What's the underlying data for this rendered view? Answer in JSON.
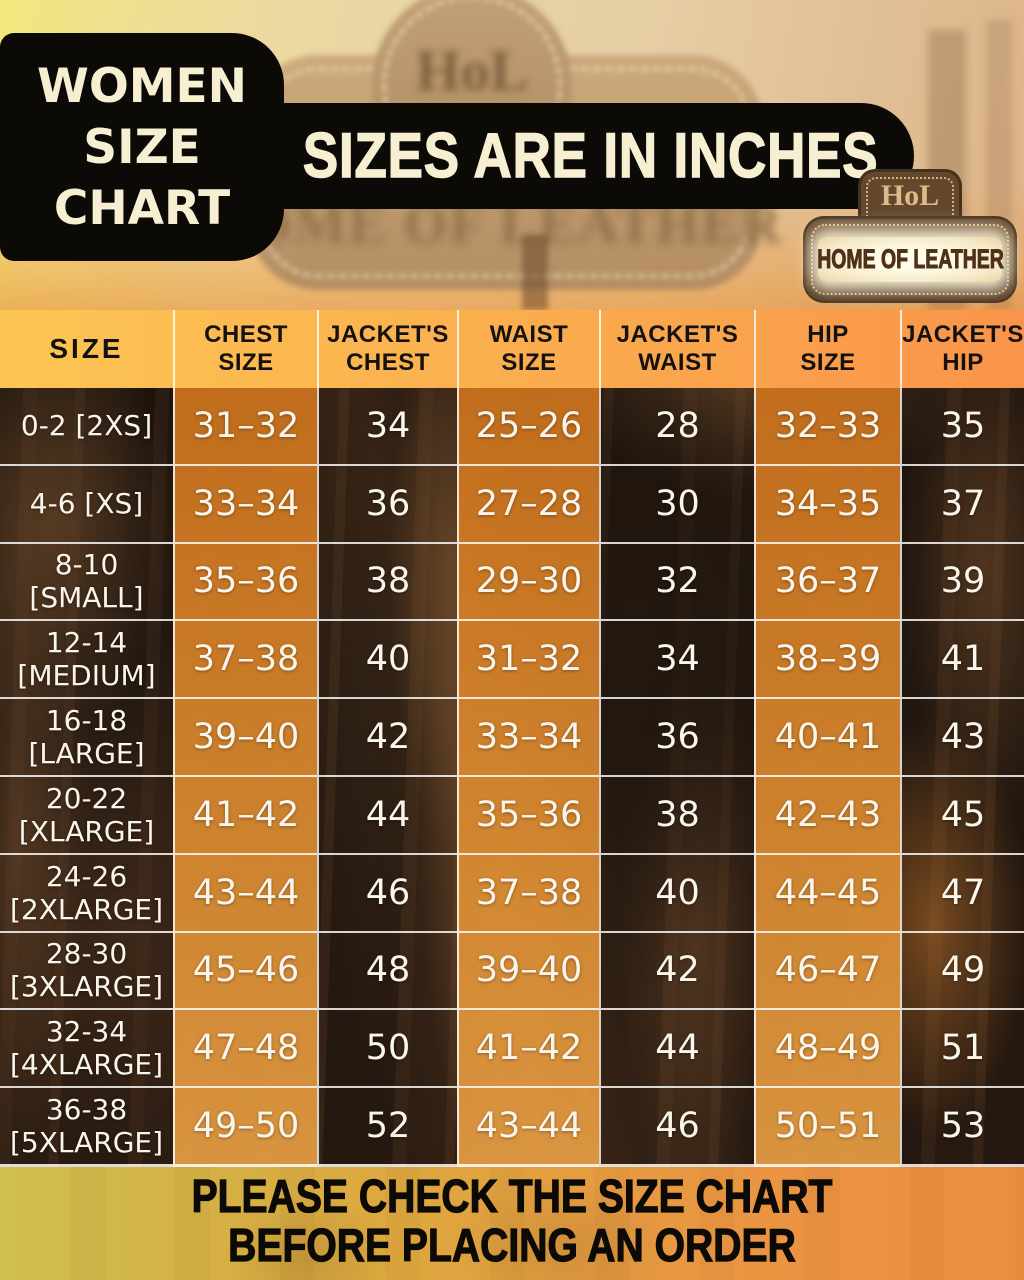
{
  "title": {
    "lines": [
      "WOMEN",
      "SIZE",
      "CHART"
    ]
  },
  "banner": {
    "text": "SIZES ARE IN INCHES"
  },
  "badge": {
    "monogram": "HoL",
    "name": "HOME OF LEATHER"
  },
  "signboard": {
    "monogram": "HoL",
    "text": "OME OF LEATHER"
  },
  "colors": {
    "accent_orange": "#e08b2e",
    "header_gradient_left": "#fcc553",
    "header_gradient_right": "#f9944a",
    "panel_black": "#0c0a07",
    "text_cream": "#f7efd2"
  },
  "table": {
    "headers": [
      {
        "l1": "SIZE",
        "l2": ""
      },
      {
        "l1": "CHEST",
        "l2": "SIZE"
      },
      {
        "l1": "JACKET'S",
        "l2": "CHEST"
      },
      {
        "l1": "WAIST",
        "l2": "SIZE"
      },
      {
        "l1": "JACKET'S",
        "l2": "WAIST"
      },
      {
        "l1": "HIP",
        "l2": "SIZE"
      },
      {
        "l1": "JACKET'S",
        "l2": "HIP"
      }
    ],
    "rows": [
      {
        "label1": "0-2 [2XS]",
        "label2": "",
        "chest": "31–32",
        "jacket_chest": "34",
        "waist": "25–26",
        "jacket_waist": "28",
        "hip": "32–33",
        "jacket_hip": "35"
      },
      {
        "label1": "4-6 [XS]",
        "label2": "",
        "chest": "33–34",
        "jacket_chest": "36",
        "waist": "27–28",
        "jacket_waist": "30",
        "hip": "34–35",
        "jacket_hip": "37"
      },
      {
        "label1": "8-10",
        "label2": "[SMALL]",
        "chest": "35–36",
        "jacket_chest": "38",
        "waist": "29–30",
        "jacket_waist": "32",
        "hip": "36–37",
        "jacket_hip": "39"
      },
      {
        "label1": "12-14",
        "label2": "[MEDIUM]",
        "chest": "37–38",
        "jacket_chest": "40",
        "waist": "31–32",
        "jacket_waist": "34",
        "hip": "38–39",
        "jacket_hip": "41"
      },
      {
        "label1": "16-18",
        "label2": "[LARGE]",
        "chest": "39–40",
        "jacket_chest": "42",
        "waist": "33–34",
        "jacket_waist": "36",
        "hip": "40–41",
        "jacket_hip": "43"
      },
      {
        "label1": "20-22",
        "label2": "[XLARGE]",
        "chest": "41–42",
        "jacket_chest": "44",
        "waist": "35–36",
        "jacket_waist": "38",
        "hip": "42–43",
        "jacket_hip": "45"
      },
      {
        "label1": "24-26",
        "label2": "[2XLARGE]",
        "chest": "43–44",
        "jacket_chest": "46",
        "waist": "37–38",
        "jacket_waist": "40",
        "hip": "44–45",
        "jacket_hip": "47"
      },
      {
        "label1": "28-30",
        "label2": "[3XLARGE]",
        "chest": "45–46",
        "jacket_chest": "48",
        "waist": "39–40",
        "jacket_waist": "42",
        "hip": "46–47",
        "jacket_hip": "49"
      },
      {
        "label1": "32-34",
        "label2": "[4XLARGE]",
        "chest": "47–48",
        "jacket_chest": "50",
        "waist": "41–42",
        "jacket_waist": "44",
        "hip": "48–49",
        "jacket_hip": "51"
      },
      {
        "label1": "36-38",
        "label2": "[5XLARGE]",
        "chest": "49–50",
        "jacket_chest": "52",
        "waist": "43–44",
        "jacket_waist": "46",
        "hip": "50–51",
        "jacket_hip": "53"
      }
    ]
  },
  "footer": {
    "line1": "PLEASE CHECK THE SIZE CHART",
    "line2": "BEFORE PLACING AN ORDER"
  }
}
